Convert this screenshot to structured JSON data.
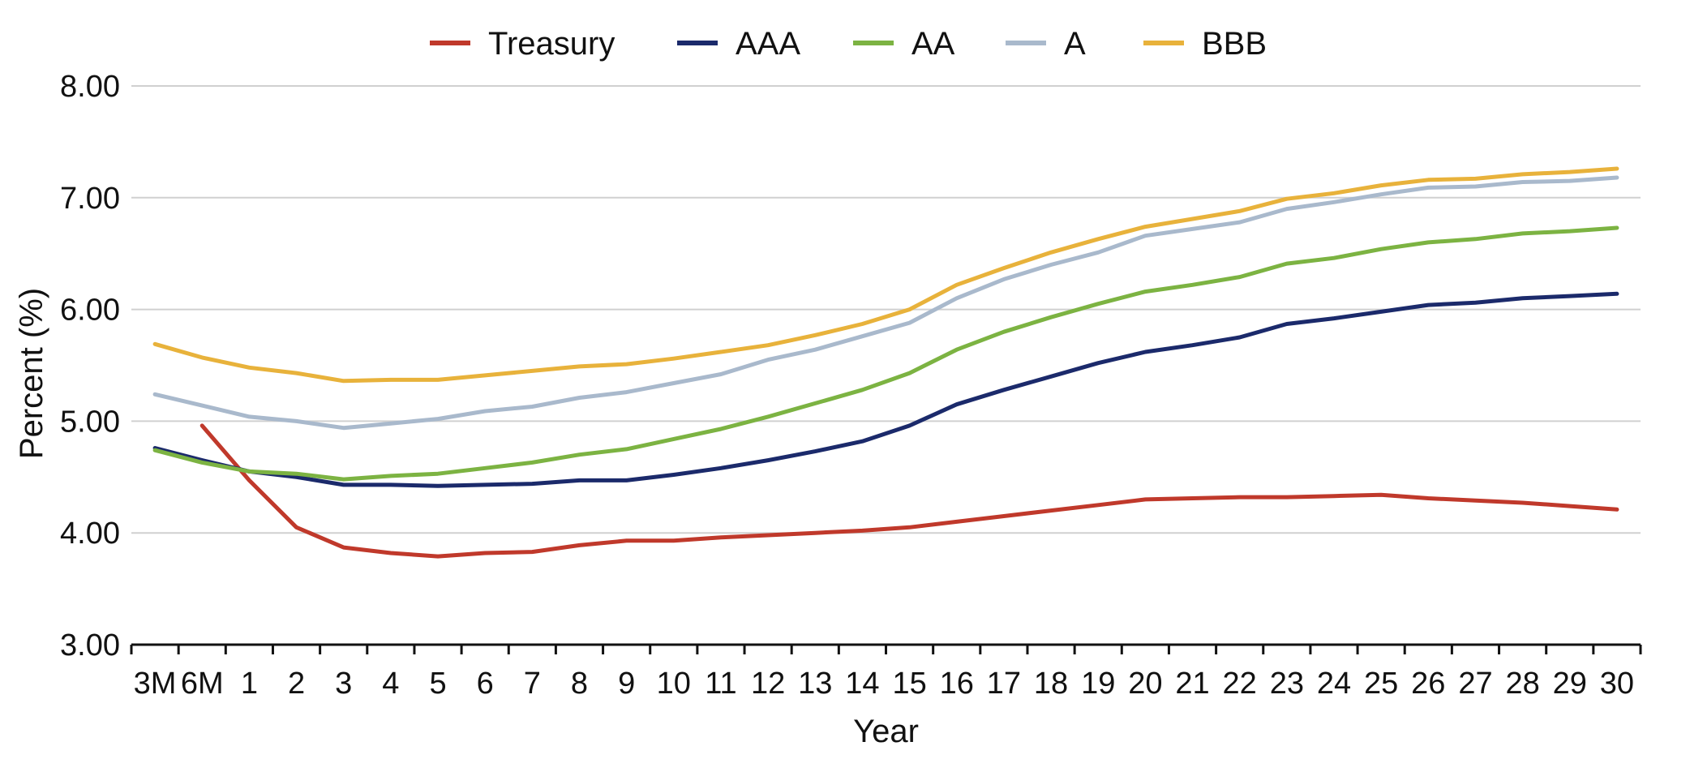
{
  "chart_data": {
    "type": "line",
    "title": "",
    "xlabel": "Year",
    "ylabel": "Percent (%)",
    "ylim": [
      3.0,
      8.0
    ],
    "yticks": [
      "8.00",
      "7.00",
      "6.00",
      "5.00",
      "4.00",
      "3.00"
    ],
    "grid": "horizontal",
    "legend_position": "top-center",
    "categories": [
      "3M",
      "6M",
      "1",
      "2",
      "3",
      "4",
      "5",
      "6",
      "7",
      "8",
      "9",
      "10",
      "11",
      "12",
      "13",
      "14",
      "15",
      "16",
      "17",
      "18",
      "19",
      "20",
      "21",
      "22",
      "23",
      "24",
      "25",
      "26",
      "27",
      "28",
      "29",
      "30"
    ],
    "series": [
      {
        "name": "Treasury",
        "color": "#c0392b",
        "start_index": 1,
        "values": [
          null,
          4.96,
          4.47,
          4.05,
          3.87,
          3.82,
          3.79,
          3.82,
          3.83,
          3.89,
          3.93,
          3.93,
          3.96,
          3.98,
          4.0,
          4.02,
          4.05,
          4.1,
          4.15,
          4.2,
          4.25,
          4.3,
          4.31,
          4.32,
          4.32,
          4.33,
          4.34,
          4.31,
          4.29,
          4.27,
          4.24,
          4.21
        ]
      },
      {
        "name": "AAA",
        "color": "#1b2a6b",
        "values": [
          4.76,
          4.65,
          4.55,
          4.5,
          4.43,
          4.43,
          4.42,
          4.43,
          4.44,
          4.47,
          4.47,
          4.52,
          4.58,
          4.65,
          4.73,
          4.82,
          4.96,
          5.15,
          5.28,
          5.4,
          5.52,
          5.62,
          5.68,
          5.75,
          5.87,
          5.92,
          5.98,
          6.04,
          6.06,
          6.1,
          6.12,
          6.14
        ]
      },
      {
        "name": "AA",
        "color": "#7cb342",
        "values": [
          4.74,
          4.63,
          4.55,
          4.53,
          4.48,
          4.51,
          4.53,
          4.58,
          4.63,
          4.7,
          4.75,
          4.84,
          4.93,
          5.04,
          5.16,
          5.28,
          5.43,
          5.64,
          5.8,
          5.93,
          6.05,
          6.16,
          6.22,
          6.29,
          6.41,
          6.46,
          6.54,
          6.6,
          6.63,
          6.68,
          6.7,
          6.73
        ]
      },
      {
        "name": "A",
        "color": "#a9b9cc",
        "values": [
          5.24,
          5.14,
          5.04,
          5.0,
          4.94,
          4.98,
          5.02,
          5.09,
          5.13,
          5.21,
          5.26,
          5.34,
          5.42,
          5.55,
          5.64,
          5.76,
          5.88,
          6.1,
          6.27,
          6.4,
          6.51,
          6.66,
          6.72,
          6.78,
          6.9,
          6.96,
          7.03,
          7.09,
          7.1,
          7.14,
          7.15,
          7.18
        ]
      },
      {
        "name": "BBB",
        "color": "#e8b23b",
        "values": [
          5.69,
          5.57,
          5.48,
          5.43,
          5.36,
          5.37,
          5.37,
          5.41,
          5.45,
          5.49,
          5.51,
          5.56,
          5.62,
          5.68,
          5.77,
          5.87,
          6.0,
          6.22,
          6.37,
          6.51,
          6.63,
          6.74,
          6.81,
          6.88,
          6.99,
          7.04,
          7.11,
          7.16,
          7.17,
          7.21,
          7.23,
          7.26
        ]
      }
    ]
  }
}
